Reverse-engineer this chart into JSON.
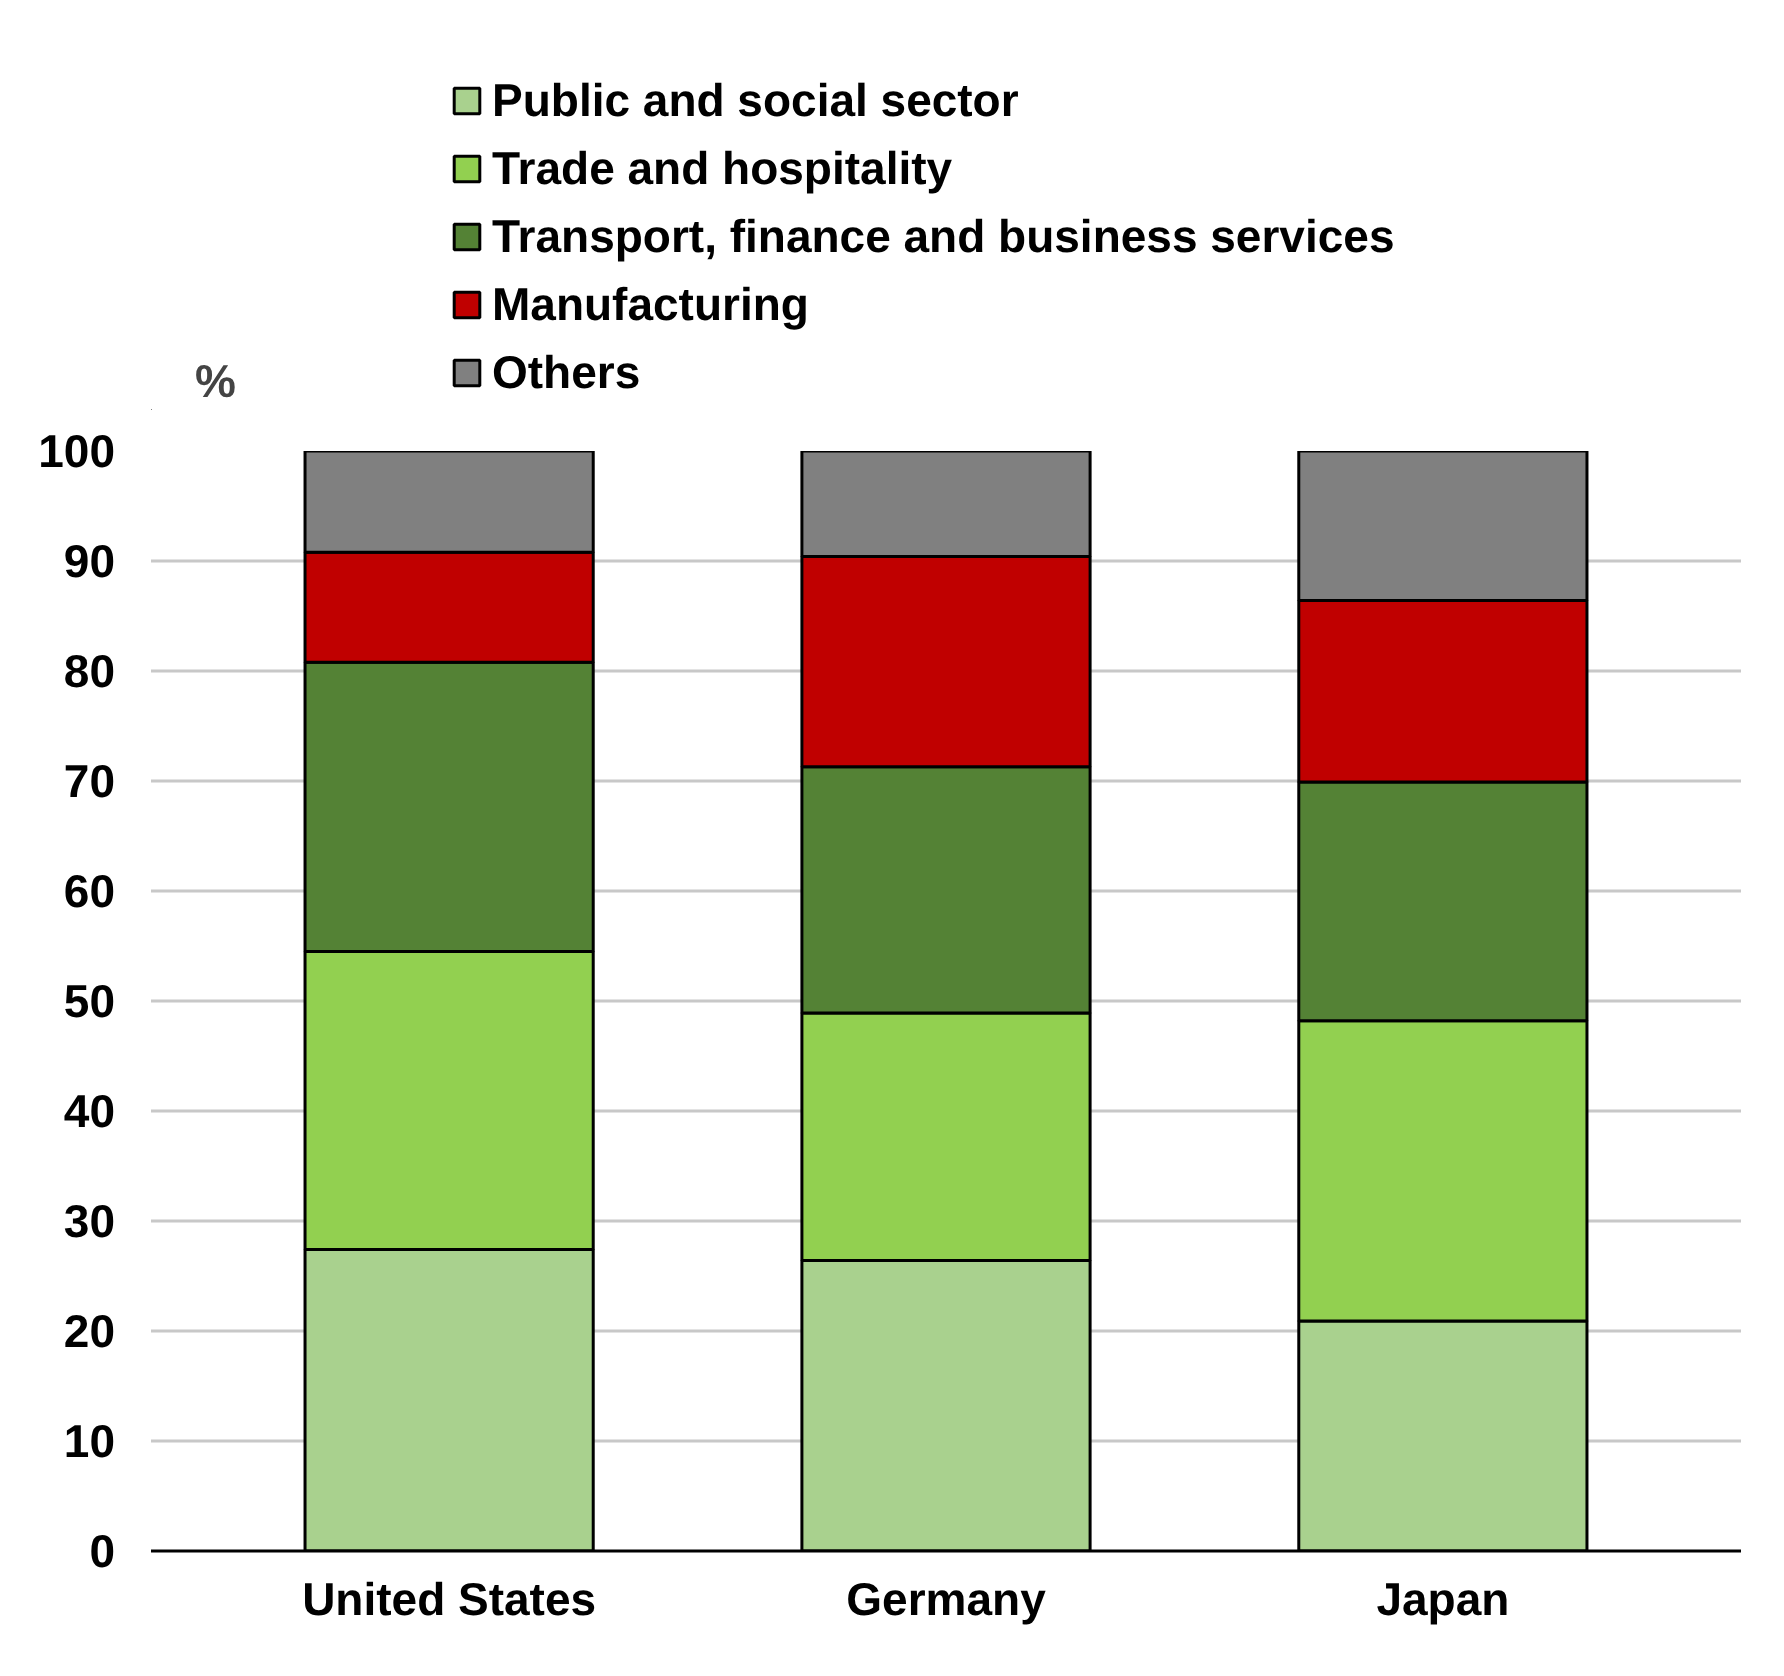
{
  "chart_data": {
    "type": "bar",
    "stacked": true,
    "ylabel": "%",
    "categories": [
      "United States",
      "Germany",
      "Japan"
    ],
    "series": [
      {
        "name": "Public and social sector",
        "color": "#a9d18e",
        "values": [
          27.4,
          26.4,
          20.9
        ]
      },
      {
        "name": "Trade and hospitality",
        "color": "#92d050",
        "values": [
          27.1,
          22.5,
          27.3
        ]
      },
      {
        "name": "Transport, finance and business services",
        "color": "#548235",
        "values": [
          26.3,
          22.4,
          21.7
        ]
      },
      {
        "name": "Manufacturing",
        "color": "#c00000",
        "values": [
          10.0,
          19.1,
          16.5
        ]
      },
      {
        "name": "Others",
        "color": "#808080",
        "values": [
          9.2,
          9.6,
          13.6
        ]
      }
    ],
    "ylim": [
      0,
      100
    ],
    "yticks": [
      0,
      10,
      20,
      30,
      40,
      50,
      60,
      70,
      80,
      90,
      100
    ],
    "grid": "y",
    "legend": "top"
  }
}
